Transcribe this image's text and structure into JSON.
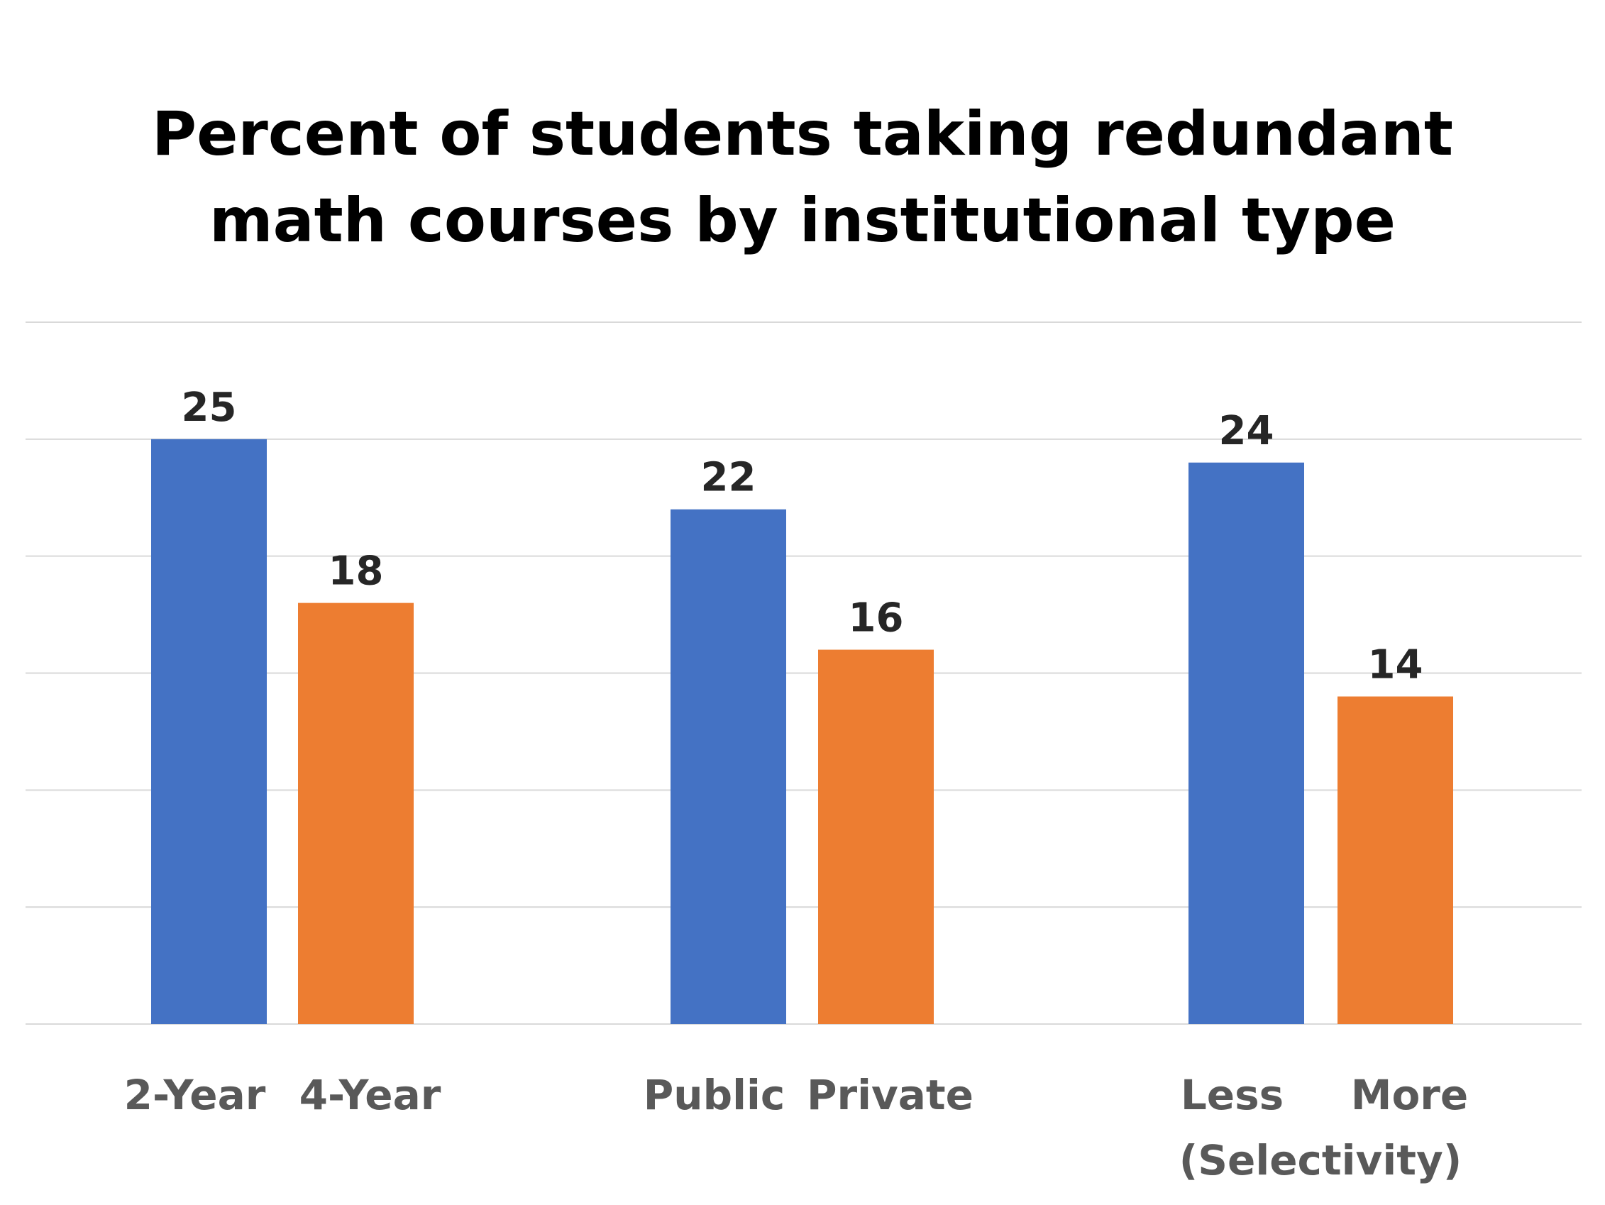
{
  "chart_data": {
    "type": "bar",
    "title": "Percent of students taking redundant math courses by institutional type",
    "title_lines": [
      "Percent of students taking redundant",
      "math courses by institutional type"
    ],
    "categories": [
      "2-Year",
      "4-Year",
      "Public",
      "Private",
      "Less",
      "More"
    ],
    "values": [
      25,
      18,
      22,
      16,
      24,
      14
    ],
    "colors": [
      "#4472C4",
      "#ED7D31",
      "#4472C4",
      "#ED7D31",
      "#4472C4",
      "#ED7D31"
    ],
    "group_note": "(Selectivity)",
    "xlabel": "",
    "ylabel": "",
    "ylim": [
      0,
      30
    ],
    "grid_step": 5,
    "grid": true,
    "y_axis_labels_shown": false,
    "legend": "none"
  }
}
